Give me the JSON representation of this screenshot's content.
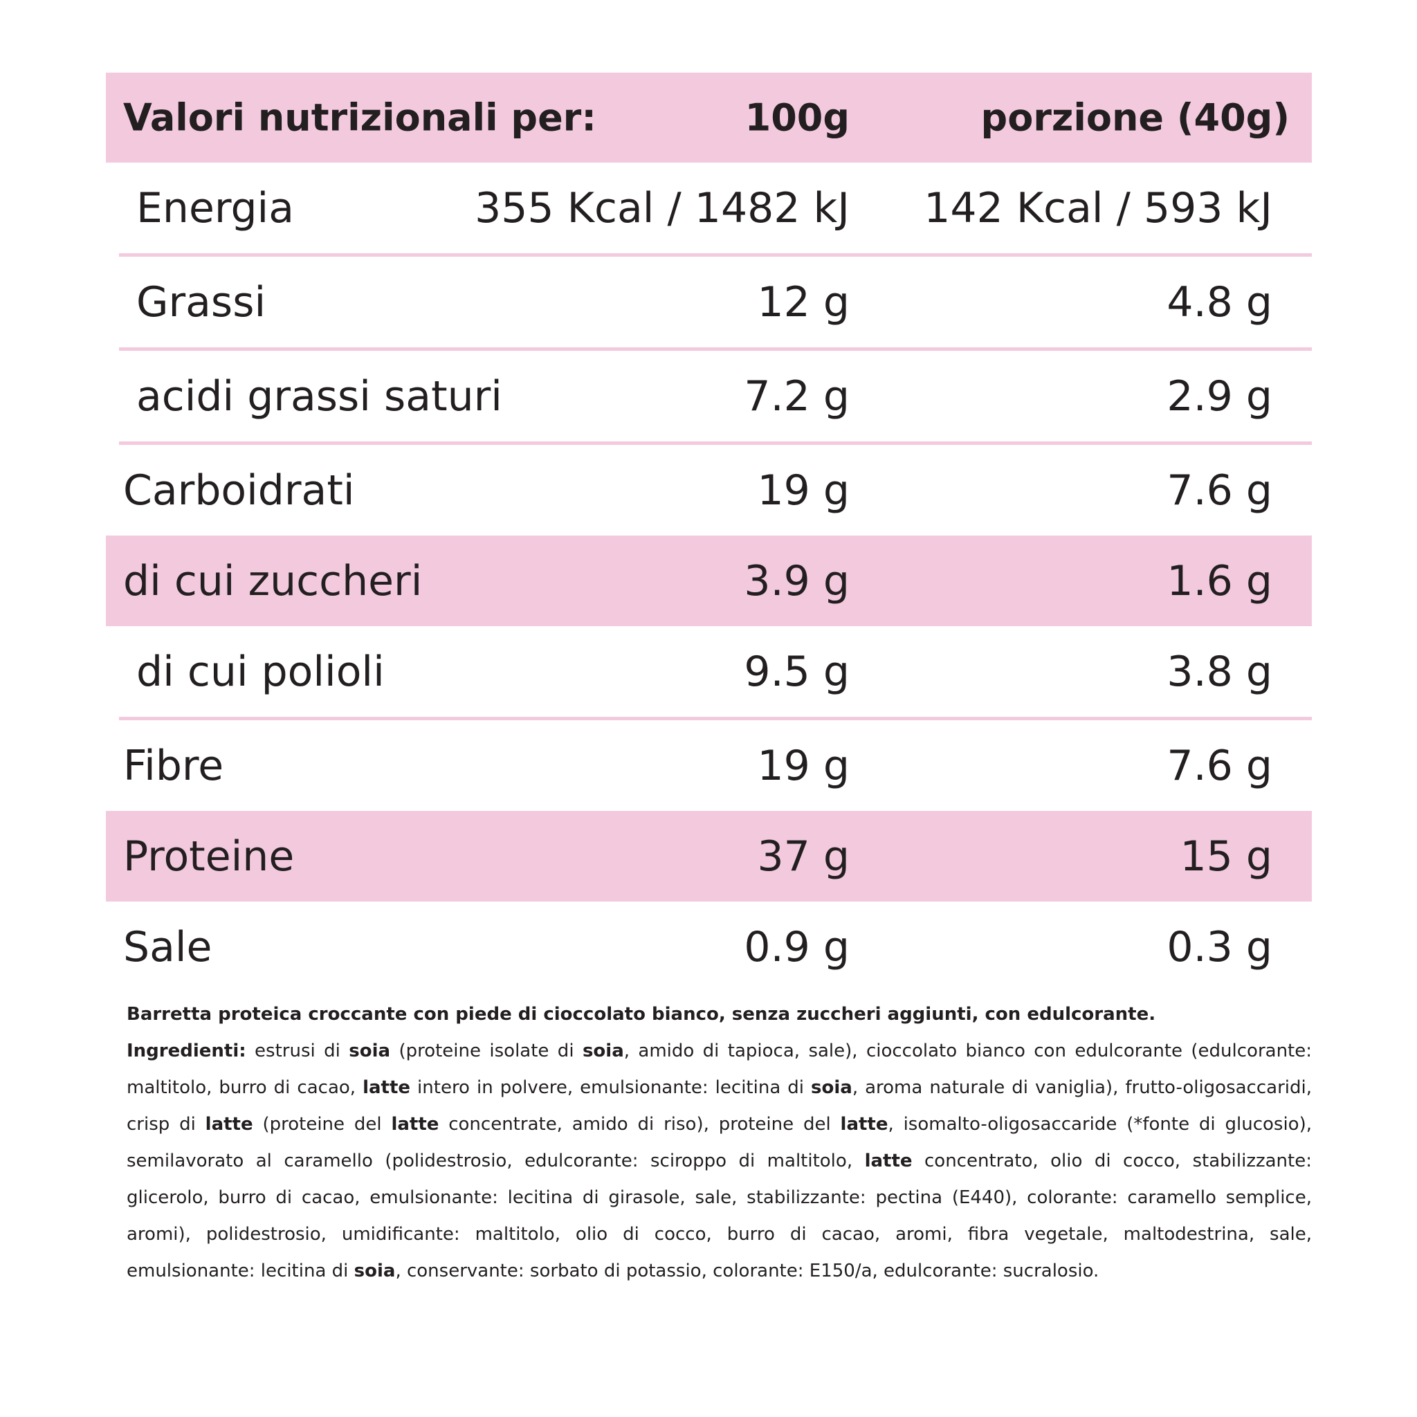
{
  "header": {
    "label": "Valori nutrizionali per:",
    "col1": "100g",
    "col2": "porzione (40g)"
  },
  "rows": [
    {
      "label": "Energia",
      "per100g": "355 Kcal / 1482 kJ",
      "portion": "142 Kcal / 593 kJ"
    },
    {
      "label": "Grassi",
      "per100g": "12 g",
      "portion": "4.8 g"
    },
    {
      "label": "acidi grassi saturi",
      "per100g": "7.2 g",
      "portion": "2.9 g"
    },
    {
      "label": "Carboidrati",
      "per100g": "19 g",
      "portion": "7.6 g"
    },
    {
      "label": "di cui zuccheri",
      "per100g": "3.9 g",
      "portion": "1.6 g"
    },
    {
      "label": "di cui polioli",
      "per100g": "9.5 g",
      "portion": "3.8 g"
    },
    {
      "label": "Fibre",
      "per100g": "19 g",
      "portion": "7.6 g"
    },
    {
      "label": "Proteine",
      "per100g": "37 g",
      "portion": "15 g"
    },
    {
      "label": "Sale",
      "per100g": "0.9 g",
      "portion": "0.3 g"
    }
  ],
  "colors": {
    "highlight": "#f3c9de",
    "text": "#231f20"
  },
  "description": "Barretta proteica croccante con piede di cioccolato bianco, senza zuccheri aggiunti, con edulcorante.",
  "ingredients": [
    {
      "t": "Ingredienti:",
      "b": true
    },
    {
      "t": " estrusi di ",
      "b": false
    },
    {
      "t": "soia",
      "b": true
    },
    {
      "t": " (proteine isolate di ",
      "b": false
    },
    {
      "t": "soia",
      "b": true
    },
    {
      "t": ", amido di tapioca, sale), cioccolato bianco con edulcorante (edulcorante: maltitolo, burro di cacao, ",
      "b": false
    },
    {
      "t": "latte",
      "b": true
    },
    {
      "t": " intero in polvere, emulsionante: lecitina di ",
      "b": false
    },
    {
      "t": "soia",
      "b": true
    },
    {
      "t": ", aroma naturale di vaniglia), frutto-oligosaccaridi, crisp di ",
      "b": false
    },
    {
      "t": "latte",
      "b": true
    },
    {
      "t": " (proteine del ",
      "b": false
    },
    {
      "t": "latte",
      "b": true
    },
    {
      "t": " concentrate, amido di riso), proteine del ",
      "b": false
    },
    {
      "t": "latte",
      "b": true
    },
    {
      "t": ", isomalto-oligosaccaride (*fonte di glucosio), semilavorato al caramello (polidestrosio, edulcorante: sciroppo di maltitolo, ",
      "b": false
    },
    {
      "t": "latte",
      "b": true
    },
    {
      "t": " concentrato, olio di cocco, stabilizzante: glicerolo, burro di cacao, emulsionante: lecitina di girasole, sale, stabilizzante: pectina (E440), colorante: caramello semplice, aromi), polidestrosio, umidificante: maltitolo, olio di cocco, burro di cacao, aromi, fibra vegetale, maltodestrina, sale, emulsionante: lecitina di ",
      "b": false
    },
    {
      "t": "soia",
      "b": true
    },
    {
      "t": ", conservante: sorbato di potassio, colorante: E150/a, edulcorante: sucralosio.",
      "b": false
    }
  ]
}
